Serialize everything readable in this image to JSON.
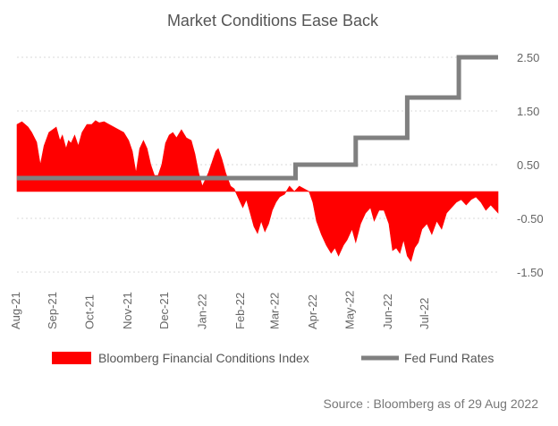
{
  "chart_data": {
    "type": "area",
    "title": "Market Conditions Ease Back",
    "x_range": [
      "2021-08-02",
      "2022-08-29"
    ],
    "x_tick_labels": [
      "Aug-21",
      "Sep-21",
      "Oct-21",
      "Nov-21",
      "Dec-21",
      "Jan-22",
      "Feb-22",
      "Mar-22",
      "Apr-22",
      "May-22",
      "Jun-22",
      "Jul-22"
    ],
    "x_tick_dates": [
      "2021-08-02",
      "2021-09-01",
      "2021-10-01",
      "2021-11-01",
      "2021-12-01",
      "2022-01-01",
      "2022-02-01",
      "2022-03-01",
      "2022-04-01",
      "2022-05-01",
      "2022-06-01",
      "2022-07-01"
    ],
    "y_axis": {
      "position": "right",
      "range": [
        -1.8,
        2.9
      ],
      "tick_values": [
        2.5,
        1.5,
        0.5,
        -0.5,
        -1.5
      ],
      "tick_labels": [
        "2.50",
        "1.50",
        "0.50",
        "-0.50",
        "-1.50"
      ],
      "grid": true
    },
    "legend_position": "bottom",
    "source": "Source : Bloomberg as of 29 Aug 2022",
    "series": [
      {
        "name": "Bloomberg Financial Conditions Index",
        "kind": "area",
        "color": "#ff0000",
        "points": [
          [
            "2021-08-02",
            1.25
          ],
          [
            "2021-08-06",
            1.3
          ],
          [
            "2021-08-11",
            1.2
          ],
          [
            "2021-08-14",
            1.1
          ],
          [
            "2021-08-18",
            0.92
          ],
          [
            "2021-08-21",
            0.5
          ],
          [
            "2021-08-24",
            0.85
          ],
          [
            "2021-08-28",
            1.1
          ],
          [
            "2021-09-03",
            1.2
          ],
          [
            "2021-09-06",
            0.95
          ],
          [
            "2021-09-08",
            1.05
          ],
          [
            "2021-09-11",
            0.8
          ],
          [
            "2021-09-13",
            0.95
          ],
          [
            "2021-09-15",
            0.9
          ],
          [
            "2021-09-18",
            1.05
          ],
          [
            "2021-09-21",
            0.85
          ],
          [
            "2021-09-24",
            1.1
          ],
          [
            "2021-09-28",
            1.25
          ],
          [
            "2021-10-02",
            1.25
          ],
          [
            "2021-10-05",
            1.32
          ],
          [
            "2021-10-08",
            1.28
          ],
          [
            "2021-10-12",
            1.3
          ],
          [
            "2021-10-16",
            1.25
          ],
          [
            "2021-10-20",
            1.2
          ],
          [
            "2021-10-24",
            1.15
          ],
          [
            "2021-10-28",
            1.1
          ],
          [
            "2021-11-01",
            0.95
          ],
          [
            "2021-11-04",
            0.75
          ],
          [
            "2021-11-07",
            0.35
          ],
          [
            "2021-11-10",
            0.8
          ],
          [
            "2021-11-13",
            0.95
          ],
          [
            "2021-11-16",
            0.8
          ],
          [
            "2021-11-19",
            0.5
          ],
          [
            "2021-11-22",
            0.3
          ],
          [
            "2021-11-25",
            0.3
          ],
          [
            "2021-11-28",
            0.5
          ],
          [
            "2021-12-01",
            0.9
          ],
          [
            "2021-12-04",
            1.05
          ],
          [
            "2021-12-07",
            1.1
          ],
          [
            "2021-12-10",
            1.0
          ],
          [
            "2021-12-14",
            1.15
          ],
          [
            "2021-12-18",
            1.0
          ],
          [
            "2021-12-22",
            0.95
          ],
          [
            "2021-12-25",
            0.7
          ],
          [
            "2021-12-28",
            0.35
          ],
          [
            "2021-12-31",
            0.1
          ],
          [
            "2022-01-02",
            0.2
          ],
          [
            "2022-01-05",
            0.35
          ],
          [
            "2022-01-08",
            0.55
          ],
          [
            "2022-01-11",
            0.75
          ],
          [
            "2022-01-13",
            0.8
          ],
          [
            "2022-01-16",
            0.6
          ],
          [
            "2022-01-19",
            0.35
          ],
          [
            "2022-01-23",
            0.1
          ],
          [
            "2022-01-26",
            0.05
          ],
          [
            "2022-01-29",
            -0.1
          ],
          [
            "2022-02-02",
            -0.3
          ],
          [
            "2022-02-05",
            -0.15
          ],
          [
            "2022-02-08",
            -0.4
          ],
          [
            "2022-02-11",
            -0.65
          ],
          [
            "2022-02-14",
            -0.78
          ],
          [
            "2022-02-17",
            -0.55
          ],
          [
            "2022-02-20",
            -0.75
          ],
          [
            "2022-02-23",
            -0.6
          ],
          [
            "2022-02-26",
            -0.35
          ],
          [
            "2022-03-01",
            -0.2
          ],
          [
            "2022-03-04",
            -0.1
          ],
          [
            "2022-03-08",
            -0.05
          ],
          [
            "2022-03-12",
            0.1
          ],
          [
            "2022-03-16",
            0.0
          ],
          [
            "2022-03-20",
            0.1
          ],
          [
            "2022-03-24",
            0.05
          ],
          [
            "2022-03-28",
            0.0
          ],
          [
            "2022-03-31",
            -0.2
          ],
          [
            "2022-04-03",
            -0.55
          ],
          [
            "2022-04-07",
            -0.8
          ],
          [
            "2022-04-11",
            -1.0
          ],
          [
            "2022-04-15",
            -1.15
          ],
          [
            "2022-04-18",
            -1.05
          ],
          [
            "2022-04-21",
            -1.2
          ],
          [
            "2022-04-25",
            -1.0
          ],
          [
            "2022-04-28",
            -0.9
          ],
          [
            "2022-05-02",
            -0.7
          ],
          [
            "2022-05-05",
            -0.95
          ],
          [
            "2022-05-09",
            -0.6
          ],
          [
            "2022-05-13",
            -0.4
          ],
          [
            "2022-05-17",
            -0.3
          ],
          [
            "2022-05-20",
            -0.55
          ],
          [
            "2022-05-24",
            -0.35
          ],
          [
            "2022-05-28",
            -0.35
          ],
          [
            "2022-06-01",
            -0.6
          ],
          [
            "2022-06-04",
            -1.1
          ],
          [
            "2022-06-07",
            -1.05
          ],
          [
            "2022-06-10",
            -1.15
          ],
          [
            "2022-06-13",
            -0.9
          ],
          [
            "2022-06-16",
            -1.2
          ],
          [
            "2022-06-19",
            -1.3
          ],
          [
            "2022-06-22",
            -1.05
          ],
          [
            "2022-06-25",
            -0.95
          ],
          [
            "2022-06-28",
            -0.7
          ],
          [
            "2022-07-02",
            -0.6
          ],
          [
            "2022-07-06",
            -0.8
          ],
          [
            "2022-07-10",
            -0.55
          ],
          [
            "2022-07-14",
            -0.7
          ],
          [
            "2022-07-18",
            -0.4
          ],
          [
            "2022-07-22",
            -0.3
          ],
          [
            "2022-07-26",
            -0.2
          ],
          [
            "2022-07-30",
            -0.15
          ],
          [
            "2022-08-03",
            -0.25
          ],
          [
            "2022-08-07",
            -0.15
          ],
          [
            "2022-08-11",
            -0.1
          ],
          [
            "2022-08-15",
            -0.2
          ],
          [
            "2022-08-19",
            -0.35
          ],
          [
            "2022-08-23",
            -0.25
          ],
          [
            "2022-08-29",
            -0.4
          ]
        ]
      },
      {
        "name": "Fed Fund Rates",
        "kind": "step",
        "color": "#808080",
        "points": [
          [
            "2021-08-02",
            0.25
          ],
          [
            "2022-03-17",
            0.5
          ],
          [
            "2022-05-05",
            1.0
          ],
          [
            "2022-06-16",
            1.75
          ],
          [
            "2022-07-28",
            2.5
          ],
          [
            "2022-08-29",
            2.5
          ]
        ]
      }
    ]
  }
}
